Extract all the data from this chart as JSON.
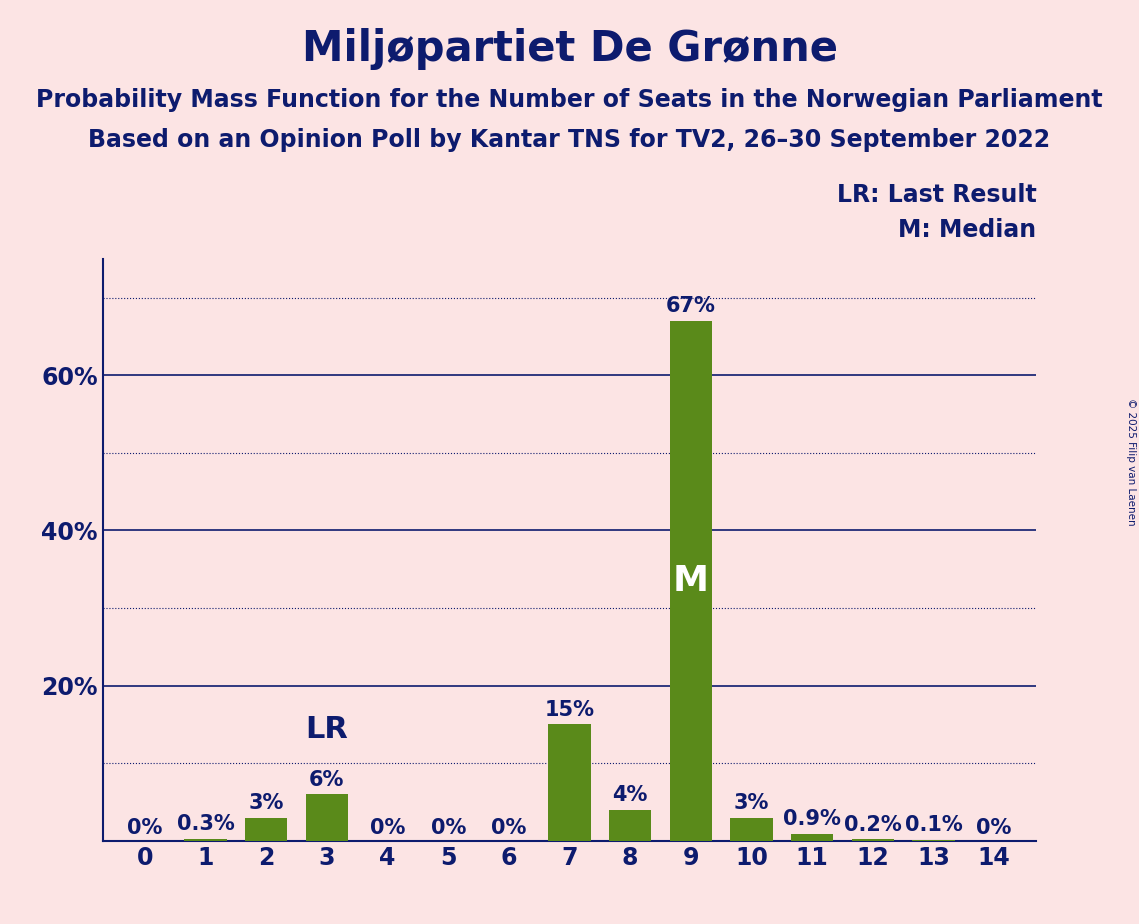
{
  "title": "Miljøpartiet De Grønne",
  "subtitle1": "Probability Mass Function for the Number of Seats in the Norwegian Parliament",
  "subtitle2": "Based on an Opinion Poll by Kantar TNS for TV2, 26–30 September 2022",
  "copyright": "© 2025 Filip van Laenen",
  "categories": [
    0,
    1,
    2,
    3,
    4,
    5,
    6,
    7,
    8,
    9,
    10,
    11,
    12,
    13,
    14
  ],
  "values": [
    0.0,
    0.3,
    3.0,
    6.0,
    0.0,
    0.0,
    0.0,
    15.0,
    4.0,
    67.0,
    3.0,
    0.9,
    0.2,
    0.1,
    0.0
  ],
  "labels": [
    "0%",
    "0.3%",
    "3%",
    "6%",
    "0%",
    "0%",
    "0%",
    "15%",
    "4%",
    "67%",
    "3%",
    "0.9%",
    "0.2%",
    "0.1%",
    "0%"
  ],
  "bar_color": "#5a8a1a",
  "background_color": "#fce4e4",
  "text_color": "#0d1b6e",
  "grid_color_solid": "#0d1b6e",
  "grid_color_dotted": "#0d1b6e",
  "ylim": [
    0,
    75
  ],
  "solid_lines": [
    20,
    40,
    60
  ],
  "dotted_lines": [
    10,
    30,
    50,
    70
  ],
  "lr_seat": 3,
  "median_seat": 9,
  "legend_lr": "LR: Last Result",
  "legend_m": "M: Median",
  "title_fontsize": 30,
  "subtitle_fontsize": 17,
  "label_fontsize": 15,
  "tick_fontsize": 17,
  "annotation_fontsize": 22
}
